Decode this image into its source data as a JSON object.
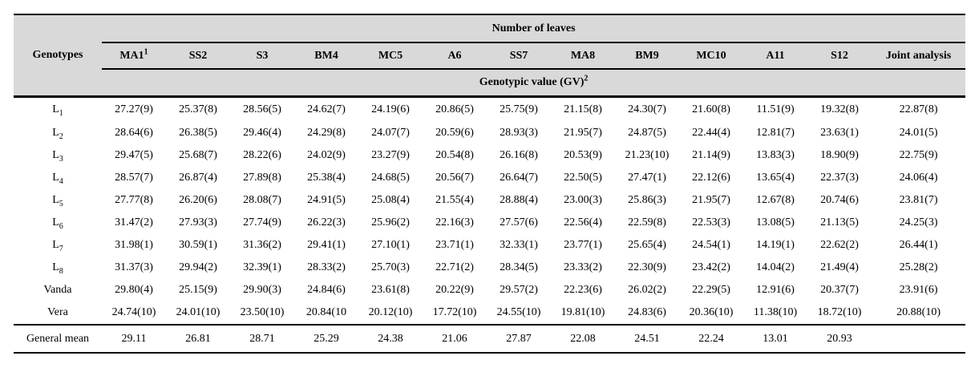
{
  "table": {
    "title": "Number of leaves",
    "genotypes_header": "Genotypes",
    "subheader": {
      "text": "Genotypic value (GV)",
      "sup": "2"
    },
    "columns": [
      {
        "text": "MA1",
        "sup": "1"
      },
      {
        "text": "SS2"
      },
      {
        "text": "S3"
      },
      {
        "text": "BM4"
      },
      {
        "text": "MC5"
      },
      {
        "text": "A6"
      },
      {
        "text": "SS7"
      },
      {
        "text": "MA8"
      },
      {
        "text": "BM9"
      },
      {
        "text": "MC10"
      },
      {
        "text": "A11"
      },
      {
        "text": "S12"
      },
      {
        "text": "Joint analysis"
      }
    ],
    "rows": [
      {
        "label": {
          "text": "L",
          "sub": "1"
        },
        "values": [
          "27.27(9)",
          "25.37(8)",
          "28.56(5)",
          "24.62(7)",
          "24.19(6)",
          "20.86(5)",
          "25.75(9)",
          "21.15(8)",
          "24.30(7)",
          "21.60(8)",
          "11.51(9)",
          "19.32(8)",
          "22.87(8)"
        ]
      },
      {
        "label": {
          "text": "L",
          "sub": "2"
        },
        "values": [
          "28.64(6)",
          "26.38(5)",
          "29.46(4)",
          "24.29(8)",
          "24.07(7)",
          "20.59(6)",
          "28.93(3)",
          "21.95(7)",
          "24.87(5)",
          "22.44(4)",
          "12.81(7)",
          "23.63(1)",
          "24.01(5)"
        ]
      },
      {
        "label": {
          "text": "L",
          "sub": "3"
        },
        "values": [
          "29.47(5)",
          "25.68(7)",
          "28.22(6)",
          "24.02(9)",
          "23.27(9)",
          "20.54(8)",
          "26.16(8)",
          "20.53(9)",
          "21.23(10)",
          "21.14(9)",
          "13.83(3)",
          "18.90(9)",
          "22.75(9)"
        ]
      },
      {
        "label": {
          "text": "L",
          "sub": "4"
        },
        "values": [
          "28.57(7)",
          "26.87(4)",
          "27.89(8)",
          "25.38(4)",
          "24.68(5)",
          "20.56(7)",
          "26.64(7)",
          "22.50(5)",
          "27.47(1)",
          "22.12(6)",
          "13.65(4)",
          "22.37(3)",
          "24.06(4)"
        ]
      },
      {
        "label": {
          "text": "L",
          "sub": "5"
        },
        "values": [
          "27.77(8)",
          "26.20(6)",
          "28.08(7)",
          "24.91(5)",
          "25.08(4)",
          "21.55(4)",
          "28.88(4)",
          "23.00(3)",
          "25.86(3)",
          "21.95(7)",
          "12.67(8)",
          "20.74(6)",
          "23.81(7)"
        ]
      },
      {
        "label": {
          "text": "L",
          "sub": "6"
        },
        "values": [
          "31.47(2)",
          "27.93(3)",
          "27.74(9)",
          "26.22(3)",
          "25.96(2)",
          "22.16(3)",
          "27.57(6)",
          "22.56(4)",
          "22.59(8)",
          "22.53(3)",
          "13.08(5)",
          "21.13(5)",
          "24.25(3)"
        ]
      },
      {
        "label": {
          "text": "L",
          "sub": "7"
        },
        "values": [
          "31.98(1)",
          "30.59(1)",
          "31.36(2)",
          "29.41(1)",
          "27.10(1)",
          "23.71(1)",
          "32.33(1)",
          "23.77(1)",
          "25.65(4)",
          "24.54(1)",
          "14.19(1)",
          "22.62(2)",
          "26.44(1)"
        ]
      },
      {
        "label": {
          "text": "L",
          "sub": "8"
        },
        "values": [
          "31.37(3)",
          "29.94(2)",
          "32.39(1)",
          "28.33(2)",
          "25.70(3)",
          "22.71(2)",
          "28.34(5)",
          "23.33(2)",
          "22.30(9)",
          "23.42(2)",
          "14.04(2)",
          "21.49(4)",
          "25.28(2)"
        ]
      },
      {
        "label": {
          "text": "Vanda"
        },
        "values": [
          "29.80(4)",
          "25.15(9)",
          "29.90(3)",
          "24.84(6)",
          "23.61(8)",
          "20.22(9)",
          "29.57(2)",
          "22.23(6)",
          "26.02(2)",
          "22.29(5)",
          "12.91(6)",
          "20.37(7)",
          "23.91(6)"
        ]
      },
      {
        "label": {
          "text": "Vera"
        },
        "values": [
          "24.74(10)",
          "24.01(10)",
          "23.50(10)",
          "20.84(10",
          "20.12(10)",
          "17.72(10)",
          "24.55(10)",
          "19.81(10)",
          "24.83(6)",
          "20.36(10)",
          "11.38(10)",
          "18.72(10)",
          "20.88(10)"
        ]
      }
    ],
    "footer": {
      "label": "General mean",
      "values": [
        "29.11",
        "26.81",
        "28.71",
        "25.29",
        "24.38",
        "21.06",
        "27.87",
        "22.08",
        "24.51",
        "22.24",
        "13.01",
        "20.93",
        ""
      ]
    }
  },
  "colors": {
    "header_background": "#d9d9d9",
    "rule": "#000000",
    "text": "#000000"
  }
}
